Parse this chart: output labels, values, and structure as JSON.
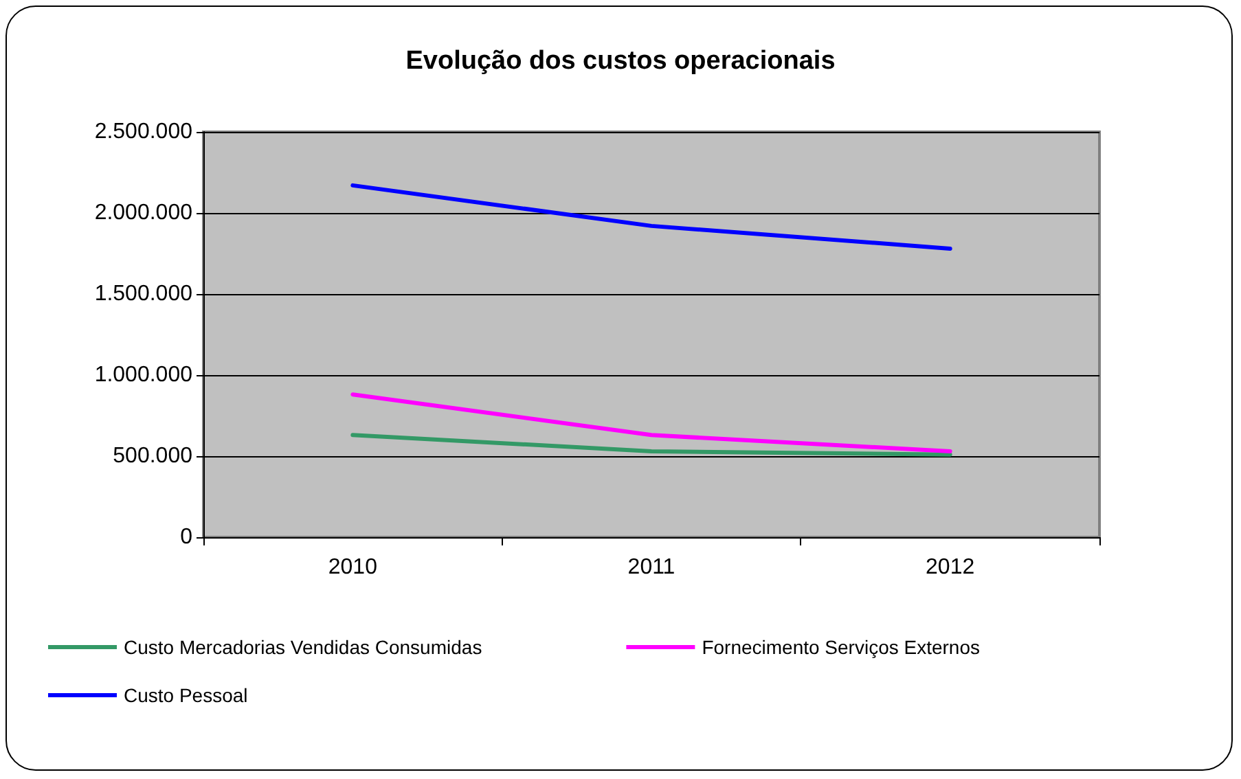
{
  "chart_data": {
    "type": "line",
    "title": "Evolução dos custos operacionais",
    "categories": [
      "2010",
      "2011",
      "2012"
    ],
    "series": [
      {
        "name": "Custo Mercadorias Vendidas Consumidas",
        "color": "#339966",
        "values": [
          630000,
          530000,
          510000
        ]
      },
      {
        "name": "Fornecimento Serviços Externos",
        "color": "#ff00ff",
        "values": [
          880000,
          630000,
          530000
        ]
      },
      {
        "name": "Custo Pessoal",
        "color": "#0000ff",
        "values": [
          2170000,
          1920000,
          1780000
        ]
      }
    ],
    "ylim": [
      0,
      2500000
    ],
    "yticks": [
      {
        "value": 0,
        "label": "0"
      },
      {
        "value": 500000,
        "label": "500.000"
      },
      {
        "value": 1000000,
        "label": "1.000.000"
      },
      {
        "value": 1500000,
        "label": "1.500.000"
      },
      {
        "value": 2000000,
        "label": "2.000.000"
      },
      {
        "value": 2500000,
        "label": "2.500.000"
      }
    ],
    "grid": "y",
    "legend": "bottom left",
    "marker": "none",
    "line_style": "solid"
  }
}
